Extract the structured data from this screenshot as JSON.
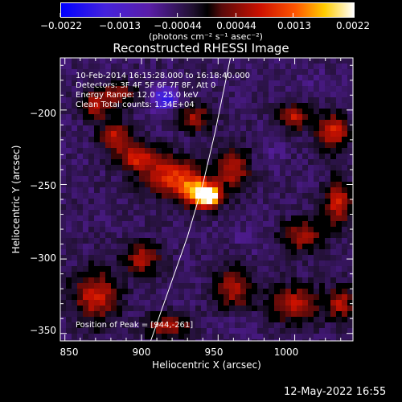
{
  "chart_data": {
    "type": "heatmap",
    "title": "Reconstructed RHESSI Image",
    "xlabel": "Heliocentric X (arcsec)",
    "ylabel": "Heliocentric Y (arcsec)",
    "xlim": [
      847,
      1038
    ],
    "ylim": [
      -355,
      -165
    ],
    "x_ticks": [
      850,
      900,
      950,
      1000
    ],
    "y_ticks": [
      -200,
      -250,
      -300,
      -350
    ],
    "x_tick_labels": [
      "850",
      "900",
      "950",
      "1000"
    ],
    "y_tick_labels": [
      "−200",
      "−250",
      "−300",
      "−350"
    ],
    "colorbar": {
      "range": [
        -0.0022,
        0.0022
      ],
      "ticks": [
        -0.0022,
        -0.0013,
        -0.00044,
        0.00044,
        0.0013,
        0.0022
      ],
      "tick_labels": [
        "−0.0022",
        "−0.0013",
        "−0.00044",
        "0.00044",
        "0.0013",
        "0.0022"
      ],
      "label": "(photons cm⁻² s⁻¹ asec⁻²)",
      "colormap": "blue-purple-black-red-yellow-white"
    },
    "peak": {
      "x": 944,
      "y": -261
    },
    "limb": {
      "points": [
        [
          906,
          -355
        ],
        [
          918,
          -320
        ],
        [
          930,
          -285
        ],
        [
          940,
          -250
        ],
        [
          948,
          -215
        ],
        [
          955,
          -180
        ],
        [
          958,
          -165
        ]
      ]
    },
    "blobs": [
      {
        "x": 944,
        "y": -258,
        "rx": 7,
        "ry": 6,
        "v": 0.0022
      },
      {
        "x": 936,
        "y": -255,
        "rx": 12,
        "ry": 10,
        "v": 0.0013
      },
      {
        "x": 920,
        "y": -245,
        "rx": 18,
        "ry": 12,
        "v": 0.0009
      },
      {
        "x": 898,
        "y": -232,
        "rx": 14,
        "ry": 9,
        "v": 0.0008
      },
      {
        "x": 883,
        "y": -218,
        "rx": 10,
        "ry": 9,
        "v": 0.0007
      },
      {
        "x": 870,
        "y": -197,
        "rx": 8,
        "ry": 10,
        "v": 0.0006
      },
      {
        "x": 885,
        "y": -190,
        "rx": 12,
        "ry": 8,
        "v": 0.0005
      },
      {
        "x": 960,
        "y": -240,
        "rx": 10,
        "ry": 14,
        "v": 0.0007
      },
      {
        "x": 935,
        "y": -205,
        "rx": 10,
        "ry": 9,
        "v": 0.0005
      },
      {
        "x": 1000,
        "y": -205,
        "rx": 10,
        "ry": 8,
        "v": 0.0007
      },
      {
        "x": 1025,
        "y": -215,
        "rx": 10,
        "ry": 12,
        "v": 0.0009
      },
      {
        "x": 1028,
        "y": -262,
        "rx": 9,
        "ry": 14,
        "v": 0.0008
      },
      {
        "x": 1005,
        "y": -285,
        "rx": 14,
        "ry": 10,
        "v": 0.0006
      },
      {
        "x": 1000,
        "y": -330,
        "rx": 16,
        "ry": 12,
        "v": 0.0007
      },
      {
        "x": 1030,
        "y": -330,
        "rx": 8,
        "ry": 12,
        "v": 0.0006
      },
      {
        "x": 870,
        "y": -325,
        "rx": 14,
        "ry": 16,
        "v": 0.0008
      },
      {
        "x": 918,
        "y": -345,
        "rx": 14,
        "ry": 8,
        "v": 0.0006
      },
      {
        "x": 900,
        "y": -300,
        "rx": 12,
        "ry": 10,
        "v": 0.0006
      },
      {
        "x": 960,
        "y": -320,
        "rx": 12,
        "ry": 14,
        "v": 0.0006
      },
      {
        "x": 915,
        "y": -192,
        "rx": 8,
        "ry": 8,
        "v": -0.0018
      },
      {
        "x": 985,
        "y": -225,
        "rx": 10,
        "ry": 12,
        "v": -0.0006
      },
      {
        "x": 1015,
        "y": -180,
        "rx": 14,
        "ry": 10,
        "v": -0.0006
      },
      {
        "x": 970,
        "y": -285,
        "rx": 14,
        "ry": 12,
        "v": -0.0006
      },
      {
        "x": 960,
        "y": -345,
        "rx": 14,
        "ry": 8,
        "v": -0.0006
      },
      {
        "x": 855,
        "y": -240,
        "rx": 8,
        "ry": 14,
        "v": -0.0005
      }
    ]
  },
  "info": {
    "time_range": "10-Feb-2014 16:15:28.000 to 16:18:40.000",
    "detectors": "Detectors: 3F 4F 5F 6F 7F 8F, Att 0",
    "energy": "Energy Range: 12.0 - 25.0 keV",
    "method": "Clean     Total counts: 1.34E+04",
    "peak_label": "Position of Peak = [944,-261]"
  },
  "footer": {
    "date": "12-May-2022 16:55"
  }
}
